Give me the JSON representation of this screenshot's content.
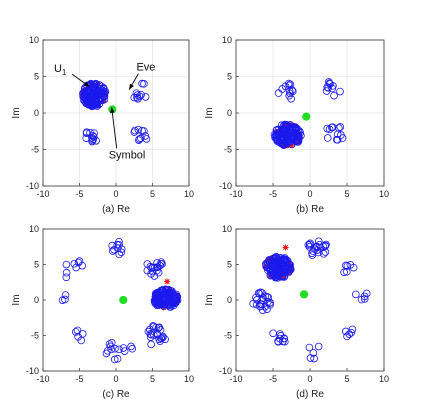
{
  "chart_data": [
    {
      "type": "scatter",
      "xlabel": "(a) Re",
      "ylabel": "Im",
      "xlim": [
        -10,
        10
      ],
      "ylim": [
        -10,
        10
      ],
      "xticks": [
        -10,
        -5,
        0,
        5,
        10
      ],
      "yticks": [
        -10,
        -5,
        0,
        5,
        10
      ],
      "grid": true,
      "dense_clusters": [
        {
          "cx": -3.0,
          "cy": 2.5,
          "rx": 1.7,
          "ry": 1.7,
          "n": 140
        }
      ],
      "sparse_clusters": [
        {
          "cx": 3.3,
          "cy": 3.0,
          "r": 1.2,
          "n": 10
        },
        {
          "cx": 3.2,
          "cy": -3.0,
          "r": 1.2,
          "n": 10
        },
        {
          "cx": -3.0,
          "cy": -3.2,
          "r": 1.2,
          "n": 12
        }
      ],
      "red_markers": [],
      "green_point": {
        "x": -0.5,
        "y": 0.5
      },
      "annotations": [
        {
          "text": "U",
          "sub": "1",
          "x": -8.5,
          "y": 5.6,
          "ax": -3.6,
          "ay": 3.6
        },
        {
          "text": "Eve",
          "x": 2.8,
          "y": 5.8,
          "ax": 1.8,
          "ay": 3.2
        },
        {
          "text": "Symbol",
          "x": -1.0,
          "y": -6.2,
          "ax": -0.6,
          "ay": 0.8
        }
      ]
    },
    {
      "type": "scatter",
      "xlabel": "(b) Re",
      "ylabel": "Im",
      "xlim": [
        -10,
        10
      ],
      "ylim": [
        -10,
        10
      ],
      "xticks": [
        -10,
        -5,
        0,
        5,
        10
      ],
      "yticks": [
        -10,
        -5,
        0,
        5,
        10
      ],
      "grid": true,
      "dense_clusters": [
        {
          "cx": -3.0,
          "cy": -3.0,
          "rx": 1.9,
          "ry": 1.6,
          "n": 140
        }
      ],
      "sparse_clusters": [
        {
          "cx": -3.0,
          "cy": 2.9,
          "r": 1.3,
          "n": 12
        },
        {
          "cx": 3.2,
          "cy": 3.4,
          "r": 1.1,
          "n": 10
        },
        {
          "cx": 3.3,
          "cy": -2.8,
          "r": 1.3,
          "n": 12
        }
      ],
      "red_markers": [],
      "green_point": {
        "x": -0.5,
        "y": -0.5
      },
      "annotations": []
    },
    {
      "type": "scatter",
      "xlabel": "(c) Re",
      "ylabel": "Im",
      "xlim": [
        -10,
        10
      ],
      "ylim": [
        -10,
        10
      ],
      "xticks": [
        -10,
        -5,
        0,
        5,
        10
      ],
      "yticks": [
        -10,
        -5,
        0,
        5,
        10
      ],
      "grid": false,
      "dense_clusters": [
        {
          "cx": 6.8,
          "cy": 0.2,
          "rx": 1.8,
          "ry": 1.4,
          "n": 140
        }
      ],
      "sparse_clusters": [
        {
          "cx": 5.3,
          "cy": 4.6,
          "r": 1.3,
          "n": 18
        },
        {
          "cx": 5.5,
          "cy": -5.0,
          "r": 1.5,
          "n": 22
        },
        {
          "cx": 0.3,
          "cy": 7.4,
          "r": 1.0,
          "n": 10
        },
        {
          "cx": -6.0,
          "cy": 4.5,
          "r": 1.6,
          "n": 8
        },
        {
          "cx": -7.0,
          "cy": 0.5,
          "r": 0.8,
          "n": 3
        },
        {
          "cx": -5.4,
          "cy": -5.2,
          "r": 1.0,
          "n": 5
        },
        {
          "cx": 0.3,
          "cy": -6.5,
          "r": 2.0,
          "n": 14
        }
      ],
      "red_markers": [
        {
          "x": 7.0,
          "y": 2.6
        }
      ],
      "green_point": {
        "x": 1.0,
        "y": 0.0
      },
      "annotations": []
    },
    {
      "type": "scatter",
      "xlabel": "(d) Re",
      "ylabel": "Im",
      "xlim": [
        -10,
        10
      ],
      "ylim": [
        -10,
        10
      ],
      "xticks": [
        -10,
        -5,
        0,
        5,
        10
      ],
      "yticks": [
        -10,
        -5,
        0,
        5,
        10
      ],
      "grid": false,
      "dense_clusters": [
        {
          "cx": -4.3,
          "cy": 4.6,
          "rx": 1.9,
          "ry": 1.6,
          "n": 140
        }
      ],
      "sparse_clusters": [
        {
          "cx": 0.8,
          "cy": 7.3,
          "r": 1.5,
          "n": 22
        },
        {
          "cx": -6.5,
          "cy": -0.2,
          "r": 1.3,
          "n": 24
        },
        {
          "cx": 5.3,
          "cy": 4.6,
          "r": 1.0,
          "n": 6
        },
        {
          "cx": 7.0,
          "cy": 0.3,
          "r": 1.0,
          "n": 5
        },
        {
          "cx": 5.2,
          "cy": -4.6,
          "r": 0.9,
          "n": 5
        },
        {
          "cx": -4.0,
          "cy": -4.8,
          "r": 1.3,
          "n": 10
        },
        {
          "cx": 0.5,
          "cy": -7.3,
          "r": 1.2,
          "n": 5
        }
      ],
      "red_markers": [
        {
          "x": -3.3,
          "y": 7.4
        }
      ],
      "green_point": {
        "x": -0.8,
        "y": 0.8
      },
      "annotations": []
    }
  ]
}
